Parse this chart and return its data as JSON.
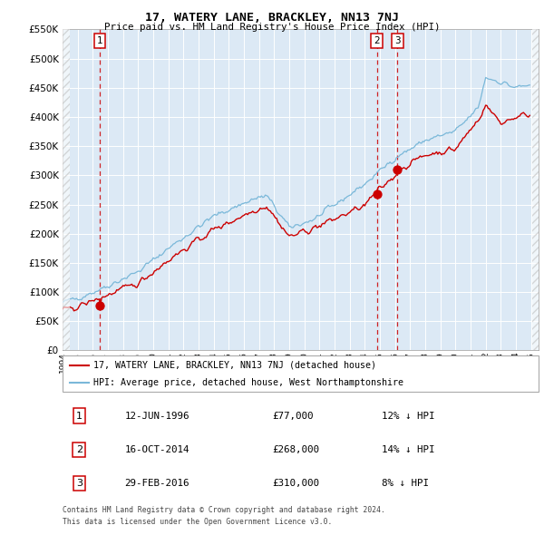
{
  "title": "17, WATERY LANE, BRACKLEY, NN13 7NJ",
  "subtitle": "Price paid vs. HM Land Registry's House Price Index (HPI)",
  "legend_label_red": "17, WATERY LANE, BRACKLEY, NN13 7NJ (detached house)",
  "legend_label_blue": "HPI: Average price, detached house, West Northamptonshire",
  "footer_line1": "Contains HM Land Registry data © Crown copyright and database right 2024.",
  "footer_line2": "This data is licensed under the Open Government Licence v3.0.",
  "transactions": [
    {
      "num": 1,
      "date": "12-JUN-1996",
      "price": "£77,000",
      "pct": "12%",
      "dir": "↓",
      "year": 1996.46
    },
    {
      "num": 2,
      "date": "16-OCT-2014",
      "price": "£268,000",
      "pct": "14%",
      "dir": "↓",
      "year": 2014.79
    },
    {
      "num": 3,
      "date": "29-FEB-2016",
      "price": "£310,000",
      "pct": "8%",
      "dir": "↓",
      "year": 2016.16
    }
  ],
  "sale_values": [
    77000,
    268000,
    310000
  ],
  "ylim": [
    0,
    550000
  ],
  "yticks": [
    0,
    50000,
    100000,
    150000,
    200000,
    250000,
    300000,
    350000,
    400000,
    450000,
    500000,
    550000
  ],
  "xlim": [
    1994.0,
    2025.5
  ],
  "xtick_years": [
    1994,
    1995,
    1996,
    1997,
    1998,
    1999,
    2000,
    2001,
    2002,
    2003,
    2004,
    2005,
    2006,
    2007,
    2008,
    2009,
    2010,
    2011,
    2012,
    2013,
    2014,
    2015,
    2016,
    2017,
    2018,
    2019,
    2020,
    2021,
    2022,
    2023,
    2024,
    2025
  ],
  "plot_bg": "#dce9f5",
  "red_color": "#cc0000",
  "blue_color": "#7ab8d9",
  "grid_color": "#ffffff",
  "hatch_color": "#c0c0c0"
}
